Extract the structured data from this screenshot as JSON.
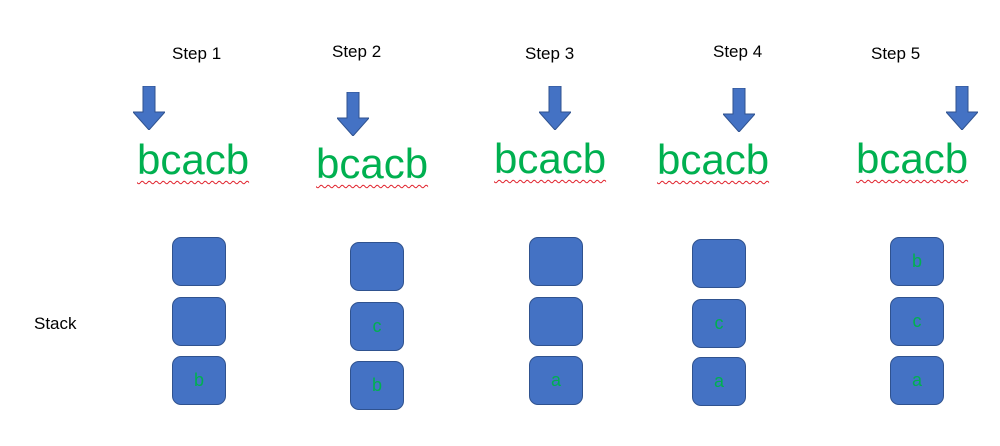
{
  "colors": {
    "arrow": "#4472c4",
    "word": "#00b050",
    "cell_fill": "#4472c4",
    "cell_border": "#2f528f",
    "cell_text": "#00b050",
    "spellcheck_underline": "#e0202a"
  },
  "stack_label": "Stack",
  "steps": [
    {
      "label": "Step 1",
      "word": "bcacb",
      "stack": [
        "",
        "",
        "b"
      ]
    },
    {
      "label": "Step 2",
      "word": "bcacb",
      "stack": [
        "",
        "c",
        "b"
      ]
    },
    {
      "label": "Step 3",
      "word": "bcacb",
      "stack": [
        "",
        "",
        "a"
      ]
    },
    {
      "label": "Step 4",
      "word": "bcacb",
      "stack": [
        "",
        "c",
        "a"
      ]
    },
    {
      "label": "Step 5",
      "word": "bcacb",
      "stack": [
        "b",
        "c",
        "a"
      ]
    }
  ],
  "icons": {
    "pointer": "arrow-down-icon"
  }
}
